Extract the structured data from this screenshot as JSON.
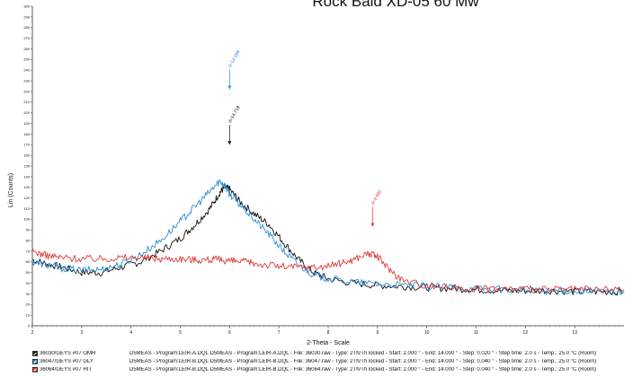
{
  "chart_data": {
    "type": "line",
    "title": "Rock Baid XD-05 60 Mw",
    "xlabel": "2-Theta - Scale",
    "ylabel": "Lin (Counts)",
    "xlim": [
      2,
      14
    ],
    "ylim": [
      0,
      300
    ],
    "x_ticks": [
      "2",
      "3",
      "4",
      "5",
      "6",
      "7",
      "8",
      "9",
      "10",
      "11",
      "12",
      "13"
    ],
    "y_ticks": [
      "300",
      "290",
      "280",
      "270",
      "260",
      "250",
      "240",
      "230",
      "220",
      "210",
      "200",
      "190",
      "180",
      "170",
      "160",
      "150",
      "140",
      "130",
      "120",
      "110",
      "100",
      "90",
      "80",
      "70",
      "60",
      "50",
      "40",
      "30",
      "20",
      "10",
      "0"
    ],
    "series": [
      {
        "name": "36030/GEYS #07 OMH",
        "color": "#111111",
        "x": [
          2.0,
          2.3,
          2.6,
          3.0,
          3.4,
          3.8,
          4.2,
          4.6,
          5.0,
          5.3,
          5.6,
          5.8,
          5.9,
          6.0,
          6.2,
          6.5,
          6.8,
          7.1,
          7.4,
          7.7,
          8.0,
          8.5,
          9.0,
          9.5,
          10.0,
          10.5,
          11.0,
          11.5,
          12.0,
          12.5,
          13.0,
          13.5,
          14.0
        ],
        "y": [
          62,
          58,
          55,
          50,
          50,
          55,
          60,
          70,
          82,
          95,
          110,
          125,
          130,
          128,
          117,
          105,
          95,
          78,
          62,
          50,
          44,
          40,
          38,
          37,
          36,
          35,
          34,
          33,
          33,
          33,
          32,
          32,
          32
        ]
      },
      {
        "name": "36047/GEYS #07 GLY",
        "color": "#2a8fd6",
        "x": [
          2.0,
          2.3,
          2.6,
          3.0,
          3.4,
          3.8,
          4.2,
          4.6,
          5.0,
          5.3,
          5.6,
          5.8,
          5.9,
          6.0,
          6.2,
          6.5,
          6.8,
          7.1,
          7.4,
          7.7,
          8.0,
          8.5,
          9.0,
          9.5,
          10.0,
          10.5,
          11.0,
          11.5,
          12.0,
          12.5,
          13.0,
          13.5,
          14.0
        ],
        "y": [
          60,
          57,
          54,
          52,
          53,
          58,
          67,
          80,
          98,
          112,
          126,
          136,
          132,
          124,
          114,
          100,
          86,
          70,
          57,
          48,
          44,
          41,
          39,
          38,
          37,
          36,
          35,
          34,
          33,
          33,
          33,
          32,
          32
        ]
      },
      {
        "name": "36064/GEYS #07 HIT",
        "color": "#e03a3a",
        "x": [
          2.0,
          2.3,
          2.6,
          3.0,
          3.4,
          3.8,
          4.2,
          4.6,
          5.0,
          5.3,
          5.6,
          5.8,
          6.0,
          6.3,
          6.6,
          7.0,
          7.4,
          7.8,
          8.2,
          8.5,
          8.8,
          9.0,
          9.2,
          9.5,
          10.0,
          10.5,
          11.0,
          11.5,
          12.0,
          12.5,
          13.0,
          13.5,
          14.0
        ],
        "y": [
          70,
          66,
          64,
          63,
          63,
          64,
          64,
          63,
          63,
          62,
          62,
          62,
          61,
          60,
          58,
          56,
          55,
          55,
          58,
          62,
          68,
          65,
          55,
          43,
          38,
          36,
          35,
          35,
          34,
          34,
          34,
          34,
          34
        ]
      }
    ],
    "annotations": [
      {
        "label": "d=14.598",
        "x": 6.0,
        "y": 222,
        "color": "#2a8fd6"
      },
      {
        "label": "d=14.718",
        "x": 6.0,
        "y": 170,
        "color": "#111111"
      },
      {
        "label": "d=9.960",
        "x": 8.9,
        "y": 93,
        "color": "#e03a3a"
      }
    ],
    "legend": {
      "placement": "bottom",
      "entries": [
        {
          "name": "36030/GEYS #07 OMH",
          "color": "#111111",
          "description": "D5MEAS - Program:LEIR-A.DQL D5MEAS - Program:LEIR-A.DQL - File: 36030.raw - Type: 2Th/Th locked - Start: 2.000 ° - End: 14.000 ° - Step: 0.020 ° - Step time: 2.0 s - Temp.: 25.0 °C (Room)"
        },
        {
          "name": "36047/GEYS #07 GLY",
          "color": "#2a8fd6",
          "description": "D5MEAS - Program:LEIR-B.DQL D5MEAS - Program:LEIR-B.DQL - File: 36047.raw - Type: 2Th/Th locked - Start: 2.000 ° - End: 14.000 ° - Step: 0.040 ° - Step time: 2.0 s - Temp.: 25.0 °C (Room)"
        },
        {
          "name": "36064/GEYS #07 HIT",
          "color": "#e03a3a",
          "description": "D5MEAS - Program:LEIR-B.DQL D5MEAS - Program:LEIR-B.DQL - File: 36064.raw - Type: 2Th/Th locked - Start: 2.000 ° - End: 14.000 ° - Step: 0.040 ° - Step time: 2.0 s - Temp.: 25.0 °C (Room)"
        }
      ]
    }
  }
}
